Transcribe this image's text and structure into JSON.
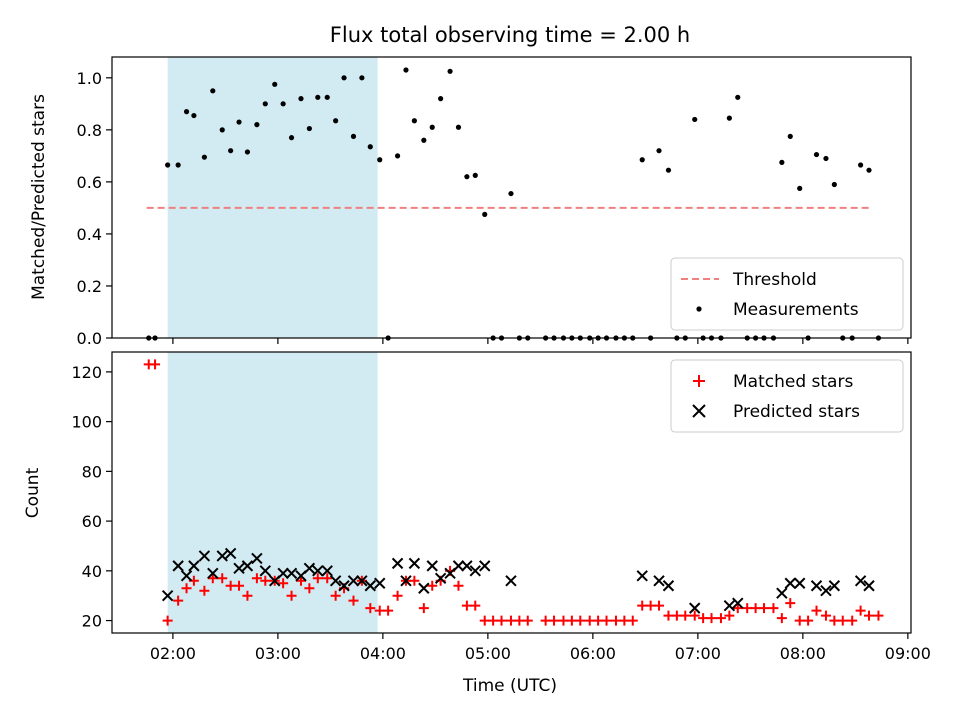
{
  "chart_data": {
    "title": "Flux total observing time = 2.00 h",
    "xlabel": "Time (UTC)",
    "x_ticks": [
      "02:00",
      "03:00",
      "04:00",
      "05:00",
      "06:00",
      "07:00",
      "08:00",
      "09:00"
    ],
    "x_range_hours": [
      1.42,
      9.03
    ],
    "highlight_span_hours": [
      1.95,
      3.95
    ],
    "highlight_color": "#add8e6",
    "panels": [
      {
        "type": "scatter",
        "ylabel": "Matched/Predicted stars",
        "ylim": [
          0,
          1.08
        ],
        "y_ticks": [
          0.0,
          0.2,
          0.4,
          0.6,
          0.8,
          1.0
        ],
        "legend_position": "bottom-right",
        "threshold": {
          "name": "Threshold",
          "value": 0.5,
          "x_start": 1.75,
          "x_end": 8.65,
          "color": "#f08080"
        },
        "series": [
          {
            "name": "Measurements",
            "color": "#000000",
            "points": [
              [
                1.77,
                0
              ],
              [
                1.83,
                0
              ],
              [
                1.95,
                0.665
              ],
              [
                2.05,
                0.665
              ],
              [
                2.13,
                0.87
              ],
              [
                2.2,
                0.855
              ],
              [
                2.3,
                0.695
              ],
              [
                2.38,
                0.95
              ],
              [
                2.47,
                0.8
              ],
              [
                2.55,
                0.72
              ],
              [
                2.63,
                0.83
              ],
              [
                2.71,
                0.715
              ],
              [
                2.8,
                0.82
              ],
              [
                2.88,
                0.9
              ],
              [
                2.97,
                0.975
              ],
              [
                3.05,
                0.9
              ],
              [
                3.13,
                0.77
              ],
              [
                3.22,
                0.92
              ],
              [
                3.3,
                0.805
              ],
              [
                3.38,
                0.925
              ],
              [
                3.47,
                0.925
              ],
              [
                3.55,
                0.835
              ],
              [
                3.63,
                1.0
              ],
              [
                3.72,
                0.775
              ],
              [
                3.8,
                1.0
              ],
              [
                3.88,
                0.735
              ],
              [
                3.97,
                0.685
              ],
              [
                4.05,
                0
              ],
              [
                4.14,
                0.7
              ],
              [
                4.22,
                1.03
              ],
              [
                4.3,
                0.835
              ],
              [
                4.39,
                0.76
              ],
              [
                4.47,
                0.81
              ],
              [
                4.55,
                0.92
              ],
              [
                4.64,
                1.025
              ],
              [
                4.72,
                0.81
              ],
              [
                4.8,
                0.62
              ],
              [
                4.88,
                0.625
              ],
              [
                4.97,
                0.475
              ],
              [
                5.05,
                0
              ],
              [
                5.13,
                0
              ],
              [
                5.22,
                0.555
              ],
              [
                5.3,
                0
              ],
              [
                5.38,
                0
              ],
              [
                5.55,
                0
              ],
              [
                5.63,
                0
              ],
              [
                5.72,
                0
              ],
              [
                5.8,
                0
              ],
              [
                5.88,
                0
              ],
              [
                5.97,
                0
              ],
              [
                6.05,
                0
              ],
              [
                6.13,
                0
              ],
              [
                6.22,
                0
              ],
              [
                6.3,
                0
              ],
              [
                6.38,
                0
              ],
              [
                6.47,
                0.685
              ],
              [
                6.55,
                0
              ],
              [
                6.63,
                0.72
              ],
              [
                6.72,
                0.645
              ],
              [
                6.8,
                0
              ],
              [
                6.88,
                0
              ],
              [
                6.97,
                0.84
              ],
              [
                7.05,
                0
              ],
              [
                7.13,
                0
              ],
              [
                7.22,
                0
              ],
              [
                7.3,
                0.845
              ],
              [
                7.38,
                0.925
              ],
              [
                7.47,
                0
              ],
              [
                7.55,
                0
              ],
              [
                7.63,
                0
              ],
              [
                7.72,
                0
              ],
              [
                7.8,
                0.675
              ],
              [
                7.88,
                0.775
              ],
              [
                7.97,
                0.575
              ],
              [
                8.05,
                0
              ],
              [
                8.13,
                0.705
              ],
              [
                8.22,
                0.69
              ],
              [
                8.3,
                0.59
              ],
              [
                8.38,
                0
              ],
              [
                8.47,
                0
              ],
              [
                8.55,
                0.665
              ],
              [
                8.63,
                0.645
              ],
              [
                8.72,
                0
              ]
            ]
          }
        ]
      },
      {
        "type": "scatter",
        "ylabel": "Count",
        "ylim": [
          15,
          128
        ],
        "y_ticks": [
          20,
          40,
          60,
          80,
          100,
          120
        ],
        "legend_position": "top-right",
        "series": [
          {
            "name": "Matched stars",
            "color": "#ff0000",
            "marker": "+",
            "points": [
              [
                1.77,
                123
              ],
              [
                1.83,
                123
              ],
              [
                1.95,
                20
              ],
              [
                2.05,
                28
              ],
              [
                2.13,
                33
              ],
              [
                2.2,
                36
              ],
              [
                2.3,
                32
              ],
              [
                2.38,
                37
              ],
              [
                2.47,
                37
              ],
              [
                2.55,
                34
              ],
              [
                2.63,
                34
              ],
              [
                2.71,
                30
              ],
              [
                2.8,
                37
              ],
              [
                2.88,
                36
              ],
              [
                2.97,
                36
              ],
              [
                3.05,
                35
              ],
              [
                3.13,
                30
              ],
              [
                3.22,
                36
              ],
              [
                3.3,
                33
              ],
              [
                3.38,
                37
              ],
              [
                3.47,
                37
              ],
              [
                3.55,
                30
              ],
              [
                3.63,
                33
              ],
              [
                3.72,
                28
              ],
              [
                3.8,
                36
              ],
              [
                3.88,
                25
              ],
              [
                3.97,
                24
              ],
              [
                4.05,
                24
              ],
              [
                4.14,
                30
              ],
              [
                4.22,
                36
              ],
              [
                4.3,
                36
              ],
              [
                4.39,
                25
              ],
              [
                4.47,
                34
              ],
              [
                4.55,
                36
              ],
              [
                4.64,
                40
              ],
              [
                4.72,
                34
              ],
              [
                4.8,
                26
              ],
              [
                4.88,
                26
              ],
              [
                4.97,
                20
              ],
              [
                5.05,
                20
              ],
              [
                5.13,
                20
              ],
              [
                5.22,
                20
              ],
              [
                5.3,
                20
              ],
              [
                5.38,
                20
              ],
              [
                5.55,
                20
              ],
              [
                5.63,
                20
              ],
              [
                5.72,
                20
              ],
              [
                5.8,
                20
              ],
              [
                5.88,
                20
              ],
              [
                5.97,
                20
              ],
              [
                6.05,
                20
              ],
              [
                6.13,
                20
              ],
              [
                6.22,
                20
              ],
              [
                6.3,
                20
              ],
              [
                6.38,
                20
              ],
              [
                6.47,
                26
              ],
              [
                6.55,
                26
              ],
              [
                6.63,
                26
              ],
              [
                6.72,
                22
              ],
              [
                6.8,
                22
              ],
              [
                6.88,
                22
              ],
              [
                6.97,
                22
              ],
              [
                7.05,
                21
              ],
              [
                7.13,
                21
              ],
              [
                7.22,
                21
              ],
              [
                7.3,
                22
              ],
              [
                7.38,
                25
              ],
              [
                7.47,
                25
              ],
              [
                7.55,
                25
              ],
              [
                7.63,
                25
              ],
              [
                7.72,
                25
              ],
              [
                7.8,
                21
              ],
              [
                7.88,
                27
              ],
              [
                7.97,
                20
              ],
              [
                8.05,
                20
              ],
              [
                8.13,
                24
              ],
              [
                8.22,
                22
              ],
              [
                8.3,
                20
              ],
              [
                8.38,
                20
              ],
              [
                8.47,
                20
              ],
              [
                8.55,
                24
              ],
              [
                8.63,
                22
              ],
              [
                8.72,
                22
              ]
            ]
          },
          {
            "name": "Predicted stars",
            "color": "#000000",
            "marker": "x",
            "points": [
              [
                1.95,
                30
              ],
              [
                2.05,
                42
              ],
              [
                2.13,
                38
              ],
              [
                2.2,
                42
              ],
              [
                2.3,
                46
              ],
              [
                2.38,
                39
              ],
              [
                2.47,
                46
              ],
              [
                2.55,
                47
              ],
              [
                2.63,
                41
              ],
              [
                2.71,
                42
              ],
              [
                2.8,
                45
              ],
              [
                2.88,
                40
              ],
              [
                2.97,
                36
              ],
              [
                3.05,
                39
              ],
              [
                3.13,
                39
              ],
              [
                3.22,
                38
              ],
              [
                3.3,
                41
              ],
              [
                3.38,
                40
              ],
              [
                3.47,
                40
              ],
              [
                3.55,
                36
              ],
              [
                3.63,
                34
              ],
              [
                3.72,
                36
              ],
              [
                3.8,
                36
              ],
              [
                3.88,
                34
              ],
              [
                3.97,
                35
              ],
              [
                4.14,
                43
              ],
              [
                4.22,
                36
              ],
              [
                4.3,
                43
              ],
              [
                4.39,
                33
              ],
              [
                4.47,
                42
              ],
              [
                4.55,
                37
              ],
              [
                4.64,
                39
              ],
              [
                4.72,
                42
              ],
              [
                4.8,
                42
              ],
              [
                4.88,
                40
              ],
              [
                4.97,
                42
              ],
              [
                5.22,
                36
              ],
              [
                6.47,
                38
              ],
              [
                6.63,
                36
              ],
              [
                6.72,
                34
              ],
              [
                6.97,
                25
              ],
              [
                7.3,
                26
              ],
              [
                7.38,
                27
              ],
              [
                7.8,
                31
              ],
              [
                7.88,
                35
              ],
              [
                7.97,
                35
              ],
              [
                8.13,
                34
              ],
              [
                8.22,
                32
              ],
              [
                8.3,
                34
              ],
              [
                8.55,
                36
              ],
              [
                8.63,
                34
              ]
            ]
          }
        ]
      }
    ]
  }
}
